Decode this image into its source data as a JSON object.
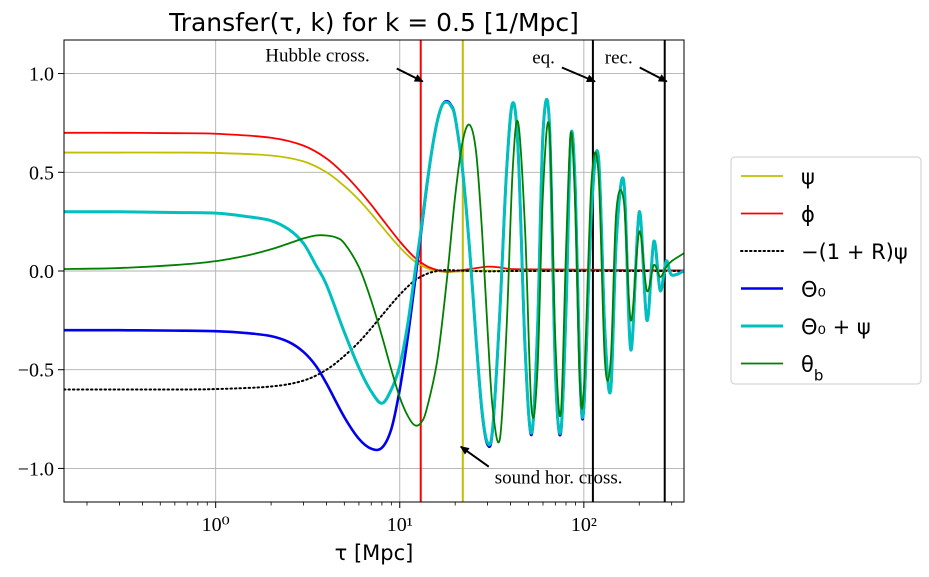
{
  "chart_data": {
    "type": "line",
    "title": "Transfer(τ, k)  for  k = 0.5  [1/Mpc]",
    "xlabel": "τ  [Mpc]",
    "ylabel": "",
    "xscale": "log",
    "xlim": [
      0.15,
      350
    ],
    "ylim": [
      -1.17,
      1.17
    ],
    "xticks": [
      1,
      10,
      100
    ],
    "xtick_labels": [
      "10⁰",
      "10¹",
      "10²"
    ],
    "yticks": [
      -1.0,
      -0.5,
      0.0,
      0.5,
      1.0
    ],
    "ytick_labels": [
      "−1.0",
      "−0.5",
      "0.0",
      "0.5",
      "1.0"
    ],
    "grid": true,
    "legend_position": "outside-right",
    "series": [
      {
        "name": "ψ",
        "color": "#bfbf00",
        "style": "solid",
        "x": [
          0.15,
          0.3,
          0.6,
          1.0,
          2.0,
          3.0,
          4.0,
          5.0,
          6.0,
          7.0,
          8.0,
          10.0,
          12.0,
          14.0,
          16.0,
          18.0,
          20.0,
          25.0,
          30.0,
          40.0,
          60.0,
          100.0,
          200.0,
          350.0
        ],
        "y": [
          0.6,
          0.6,
          0.6,
          0.598,
          0.585,
          0.555,
          0.5,
          0.43,
          0.36,
          0.29,
          0.225,
          0.12,
          0.05,
          0.015,
          0.0,
          -0.005,
          -0.003,
          0.0,
          0.002,
          0.0,
          0.0,
          0.0,
          0.0,
          0.0
        ]
      },
      {
        "name": "ϕ",
        "color": "#ff0000",
        "style": "solid",
        "x": [
          0.15,
          0.3,
          0.6,
          1.0,
          2.0,
          3.0,
          4.0,
          5.0,
          6.0,
          7.0,
          8.0,
          10.0,
          12.0,
          14.0,
          16.0,
          18.0,
          20.0,
          25.0,
          30.0,
          35.0,
          40.0,
          60.0,
          100.0,
          200.0,
          350.0
        ],
        "y": [
          0.7,
          0.7,
          0.698,
          0.695,
          0.675,
          0.635,
          0.57,
          0.49,
          0.41,
          0.335,
          0.265,
          0.15,
          0.07,
          0.025,
          0.005,
          -0.003,
          0.0,
          0.012,
          0.022,
          0.018,
          0.01,
          0.008,
          0.007,
          0.004,
          0.003
        ]
      },
      {
        "name": "−(1 + R)ψ",
        "color": "#000000",
        "style": "dotted",
        "x": [
          0.15,
          0.3,
          0.6,
          1.0,
          2.0,
          3.0,
          4.0,
          5.0,
          6.0,
          7.0,
          8.0,
          10.0,
          12.0,
          14.0,
          16.0,
          18.0,
          20.0,
          25.0,
          30.0,
          40.0,
          60.0,
          100.0,
          200.0,
          350.0
        ],
        "y": [
          -0.6,
          -0.6,
          -0.6,
          -0.598,
          -0.585,
          -0.555,
          -0.5,
          -0.43,
          -0.36,
          -0.29,
          -0.225,
          -0.12,
          -0.05,
          -0.015,
          0.0,
          0.005,
          0.003,
          0.0,
          -0.002,
          0.0,
          0.0,
          0.0,
          0.0,
          0.0
        ]
      },
      {
        "name": "Θ₀",
        "color": "#0000ee",
        "style": "solid",
        "x": [
          0.15,
          0.3,
          0.6,
          1.0,
          1.5,
          2.0,
          2.5,
          3.0,
          3.5,
          4.0,
          5.0,
          6.0,
          7.0,
          8.0,
          9.0,
          10.0,
          11.0,
          12.0,
          13.0,
          14.0,
          15.0,
          16.0,
          17.0,
          18.0,
          19.0,
          20.0,
          22.0,
          24.0,
          26.0,
          28.0,
          30.0,
          32.0,
          35.0,
          38.0,
          41.0,
          44.0,
          48.0,
          52.0,
          56.0,
          60.0,
          65.0,
          70.0,
          75.0,
          80.0,
          85.0,
          90.0,
          95.0,
          100.0,
          110.0,
          120.0,
          130.0,
          140.0,
          150.0,
          165.0,
          180.0,
          200.0,
          220.0,
          240.0,
          260.0,
          280.0,
          300.0,
          350.0
        ],
        "y": [
          -0.3,
          -0.3,
          -0.302,
          -0.305,
          -0.315,
          -0.33,
          -0.36,
          -0.41,
          -0.48,
          -0.57,
          -0.74,
          -0.85,
          -0.9,
          -0.895,
          -0.8,
          -0.6,
          -0.35,
          -0.08,
          0.18,
          0.42,
          0.62,
          0.76,
          0.84,
          0.86,
          0.84,
          0.78,
          0.5,
          0.1,
          -0.35,
          -0.72,
          -0.88,
          -0.8,
          -0.2,
          0.5,
          0.85,
          0.6,
          -0.4,
          -0.83,
          -0.3,
          0.7,
          0.75,
          -0.5,
          -0.82,
          -0.2,
          0.68,
          0.4,
          -0.5,
          -0.7,
          0.3,
          0.58,
          -0.3,
          -0.6,
          0.15,
          0.45,
          -0.4,
          0.3,
          -0.25,
          0.15,
          -0.1,
          0.05,
          -0.02,
          0.0
        ]
      },
      {
        "name": "Θ₀ + ψ",
        "color": "#00bfbf",
        "style": "solid",
        "x": [
          0.15,
          0.3,
          0.6,
          1.0,
          1.5,
          2.0,
          2.5,
          3.0,
          3.5,
          4.0,
          5.0,
          6.0,
          7.0,
          8.0,
          9.0,
          10.0,
          11.0,
          12.0,
          13.0,
          14.0,
          15.0,
          16.0,
          17.0,
          18.0,
          19.0,
          20.0,
          22.0,
          24.0,
          26.0,
          28.0,
          30.0,
          32.0,
          35.0,
          38.0,
          41.0,
          44.0,
          48.0,
          52.0,
          56.0,
          60.0,
          65.0,
          70.0,
          75.0,
          80.0,
          85.0,
          90.0,
          95.0,
          100.0,
          110.0,
          120.0,
          130.0,
          140.0,
          150.0,
          165.0,
          180.0,
          200.0,
          220.0,
          240.0,
          260.0,
          280.0,
          300.0,
          350.0
        ],
        "y": [
          0.3,
          0.3,
          0.296,
          0.293,
          0.275,
          0.255,
          0.21,
          0.14,
          0.03,
          -0.07,
          -0.31,
          -0.49,
          -0.61,
          -0.67,
          -0.6,
          -0.48,
          -0.28,
          -0.03,
          0.2,
          0.43,
          0.62,
          0.76,
          0.84,
          0.855,
          0.835,
          0.775,
          0.5,
          0.1,
          -0.35,
          -0.71,
          -0.87,
          -0.79,
          -0.2,
          0.5,
          0.85,
          0.6,
          -0.4,
          -0.82,
          -0.3,
          0.7,
          0.75,
          -0.5,
          -0.81,
          -0.2,
          0.68,
          0.4,
          -0.5,
          -0.69,
          0.3,
          0.58,
          -0.3,
          -0.6,
          0.15,
          0.45,
          -0.4,
          0.3,
          -0.25,
          0.15,
          -0.1,
          0.05,
          -0.02,
          0.0
        ]
      },
      {
        "name": "θ_b",
        "color": "#008000",
        "style": "solid",
        "x": [
          0.15,
          0.3,
          0.6,
          1.0,
          1.5,
          2.0,
          2.5,
          3.0,
          3.5,
          4.0,
          4.5,
          5.0,
          6.0,
          7.0,
          8.0,
          9.0,
          10.0,
          11.0,
          12.0,
          13.0,
          14.0,
          16.0,
          18.0,
          20.0,
          22.0,
          24.0,
          26.0,
          28.0,
          30.0,
          32.0,
          35.0,
          38.0,
          41.0,
          44.0,
          48.0,
          52.0,
          56.0,
          60.0,
          65.0,
          70.0,
          75.0,
          80.0,
          85.0,
          90.0,
          95.0,
          100.0,
          110.0,
          120.0,
          130.0,
          140.0,
          150.0,
          165.0,
          180.0,
          200.0,
          220.0,
          240.0,
          260.0,
          280.0,
          300.0,
          350.0
        ],
        "y": [
          0.01,
          0.015,
          0.03,
          0.05,
          0.08,
          0.11,
          0.14,
          0.165,
          0.18,
          0.18,
          0.17,
          0.14,
          0.02,
          -0.15,
          -0.33,
          -0.5,
          -0.64,
          -0.73,
          -0.78,
          -0.77,
          -0.7,
          -0.45,
          -0.05,
          0.38,
          0.66,
          0.74,
          0.6,
          0.2,
          -0.3,
          -0.7,
          -0.85,
          -0.3,
          0.5,
          0.75,
          0.2,
          -0.7,
          -0.5,
          0.4,
          0.72,
          -0.35,
          -0.72,
          0.1,
          0.7,
          0.3,
          -0.55,
          -0.6,
          0.45,
          0.5,
          -0.45,
          -0.45,
          0.3,
          0.35,
          -0.25,
          0.2,
          -0.1,
          0.03,
          -0.03,
          0.02,
          0.05,
          0.09
        ]
      }
    ],
    "vlines": [
      {
        "x": 13.0,
        "color": "#ff0000",
        "label": "Hubble cross."
      },
      {
        "x": 22.0,
        "color": "#bfbf00",
        "label": "sound hor. cross."
      },
      {
        "x": 112.0,
        "color": "#000000",
        "label": "eq."
      },
      {
        "x": 275.0,
        "color": "#000000",
        "label": "rec."
      }
    ],
    "annotations": [
      {
        "text": "Hubble cross.",
        "target_x": 13.0,
        "target_y": 0.97
      },
      {
        "text": "eq.",
        "target_x": 112.0,
        "target_y": 0.97
      },
      {
        "text": "rec.",
        "target_x": 275.0,
        "target_y": 0.97
      },
      {
        "text": "sound hor. cross.",
        "target_x": 22.0,
        "target_y": -0.9
      }
    ]
  }
}
